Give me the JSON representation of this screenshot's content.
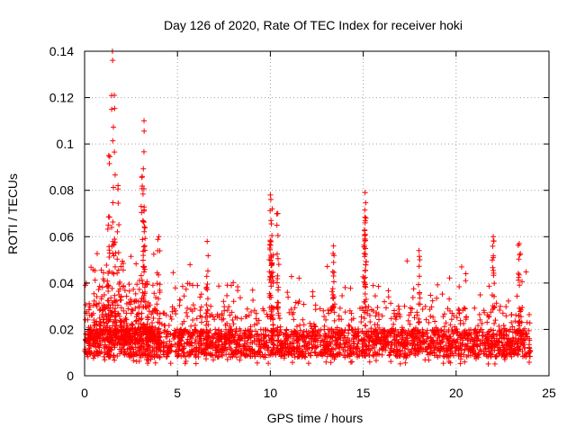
{
  "chart_data": {
    "type": "scatter",
    "title": "Day 126 of 2020, Rate Of TEC Index for receiver hoki",
    "xlabel": "GPS time / hours",
    "ylabel": "ROTI / TECUs",
    "xlim": [
      0,
      25
    ],
    "ylim": [
      0,
      0.14
    ],
    "xticks": [
      0,
      5,
      10,
      15,
      20,
      25
    ],
    "yticks": [
      0,
      0.02,
      0.04,
      0.06,
      0.08,
      0.1,
      0.12,
      0.14
    ],
    "xtick_labels": [
      "0",
      "5",
      "10",
      "15",
      "20",
      "25"
    ],
    "ytick_labels": [
      "0",
      "0.02",
      "0.04",
      "0.06",
      "0.08",
      "0.1",
      "0.12",
      "0.14"
    ],
    "grid": true,
    "marker": "+",
    "color": "#ff0000",
    "series": [
      {
        "name": "ROTI",
        "x_range_hours": [
          0,
          24
        ],
        "typical_range": [
          0.005,
          0.03
        ],
        "dense_band": [
          0.008,
          0.02
        ],
        "bursts": [
          {
            "x": 1.5,
            "ymax": 0.14
          },
          {
            "x": 1.6,
            "ymax": 0.121
          },
          {
            "x": 1.3,
            "ymax": 0.095
          },
          {
            "x": 1.8,
            "ymax": 0.082
          },
          {
            "x": 3.2,
            "ymax": 0.11
          },
          {
            "x": 3.1,
            "ymax": 0.086
          },
          {
            "x": 3.2,
            "ymax": 0.071
          },
          {
            "x": 4.0,
            "ymax": 0.06
          },
          {
            "x": 6.6,
            "ymax": 0.058
          },
          {
            "x": 10.0,
            "ymax": 0.078
          },
          {
            "x": 10.1,
            "ymax": 0.072
          },
          {
            "x": 10.4,
            "ymax": 0.07
          },
          {
            "x": 10.0,
            "ymax": 0.058
          },
          {
            "x": 13.4,
            "ymax": 0.056
          },
          {
            "x": 15.1,
            "ymax": 0.079
          },
          {
            "x": 15.1,
            "ymax": 0.066
          },
          {
            "x": 15.1,
            "ymax": 0.061
          },
          {
            "x": 18.0,
            "ymax": 0.054
          },
          {
            "x": 22.0,
            "ymax": 0.06
          },
          {
            "x": 23.4,
            "ymax": 0.057
          }
        ]
      }
    ]
  }
}
